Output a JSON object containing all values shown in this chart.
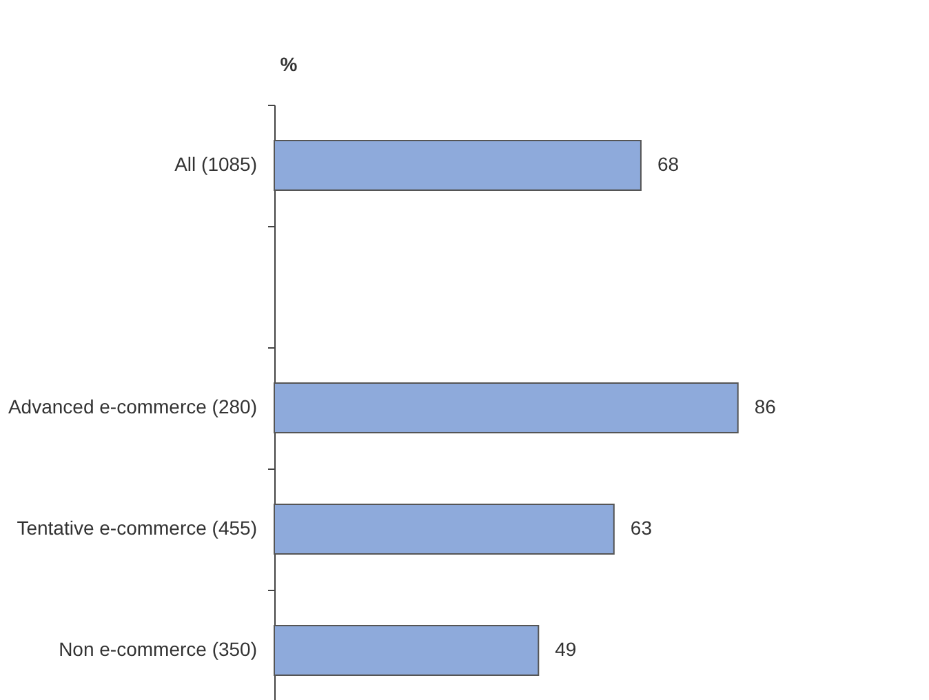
{
  "chart_data": {
    "type": "bar",
    "orientation": "horizontal",
    "xlabel": "%",
    "categories": [
      "All (1085)",
      null,
      "Advanced e-commerce (280)",
      "Tentative e-commerce (455)",
      "Non e-commerce (350)"
    ],
    "values": [
      68,
      null,
      86,
      63,
      49
    ],
    "color": "#8eaadb",
    "data_labels": true,
    "grid": false
  }
}
